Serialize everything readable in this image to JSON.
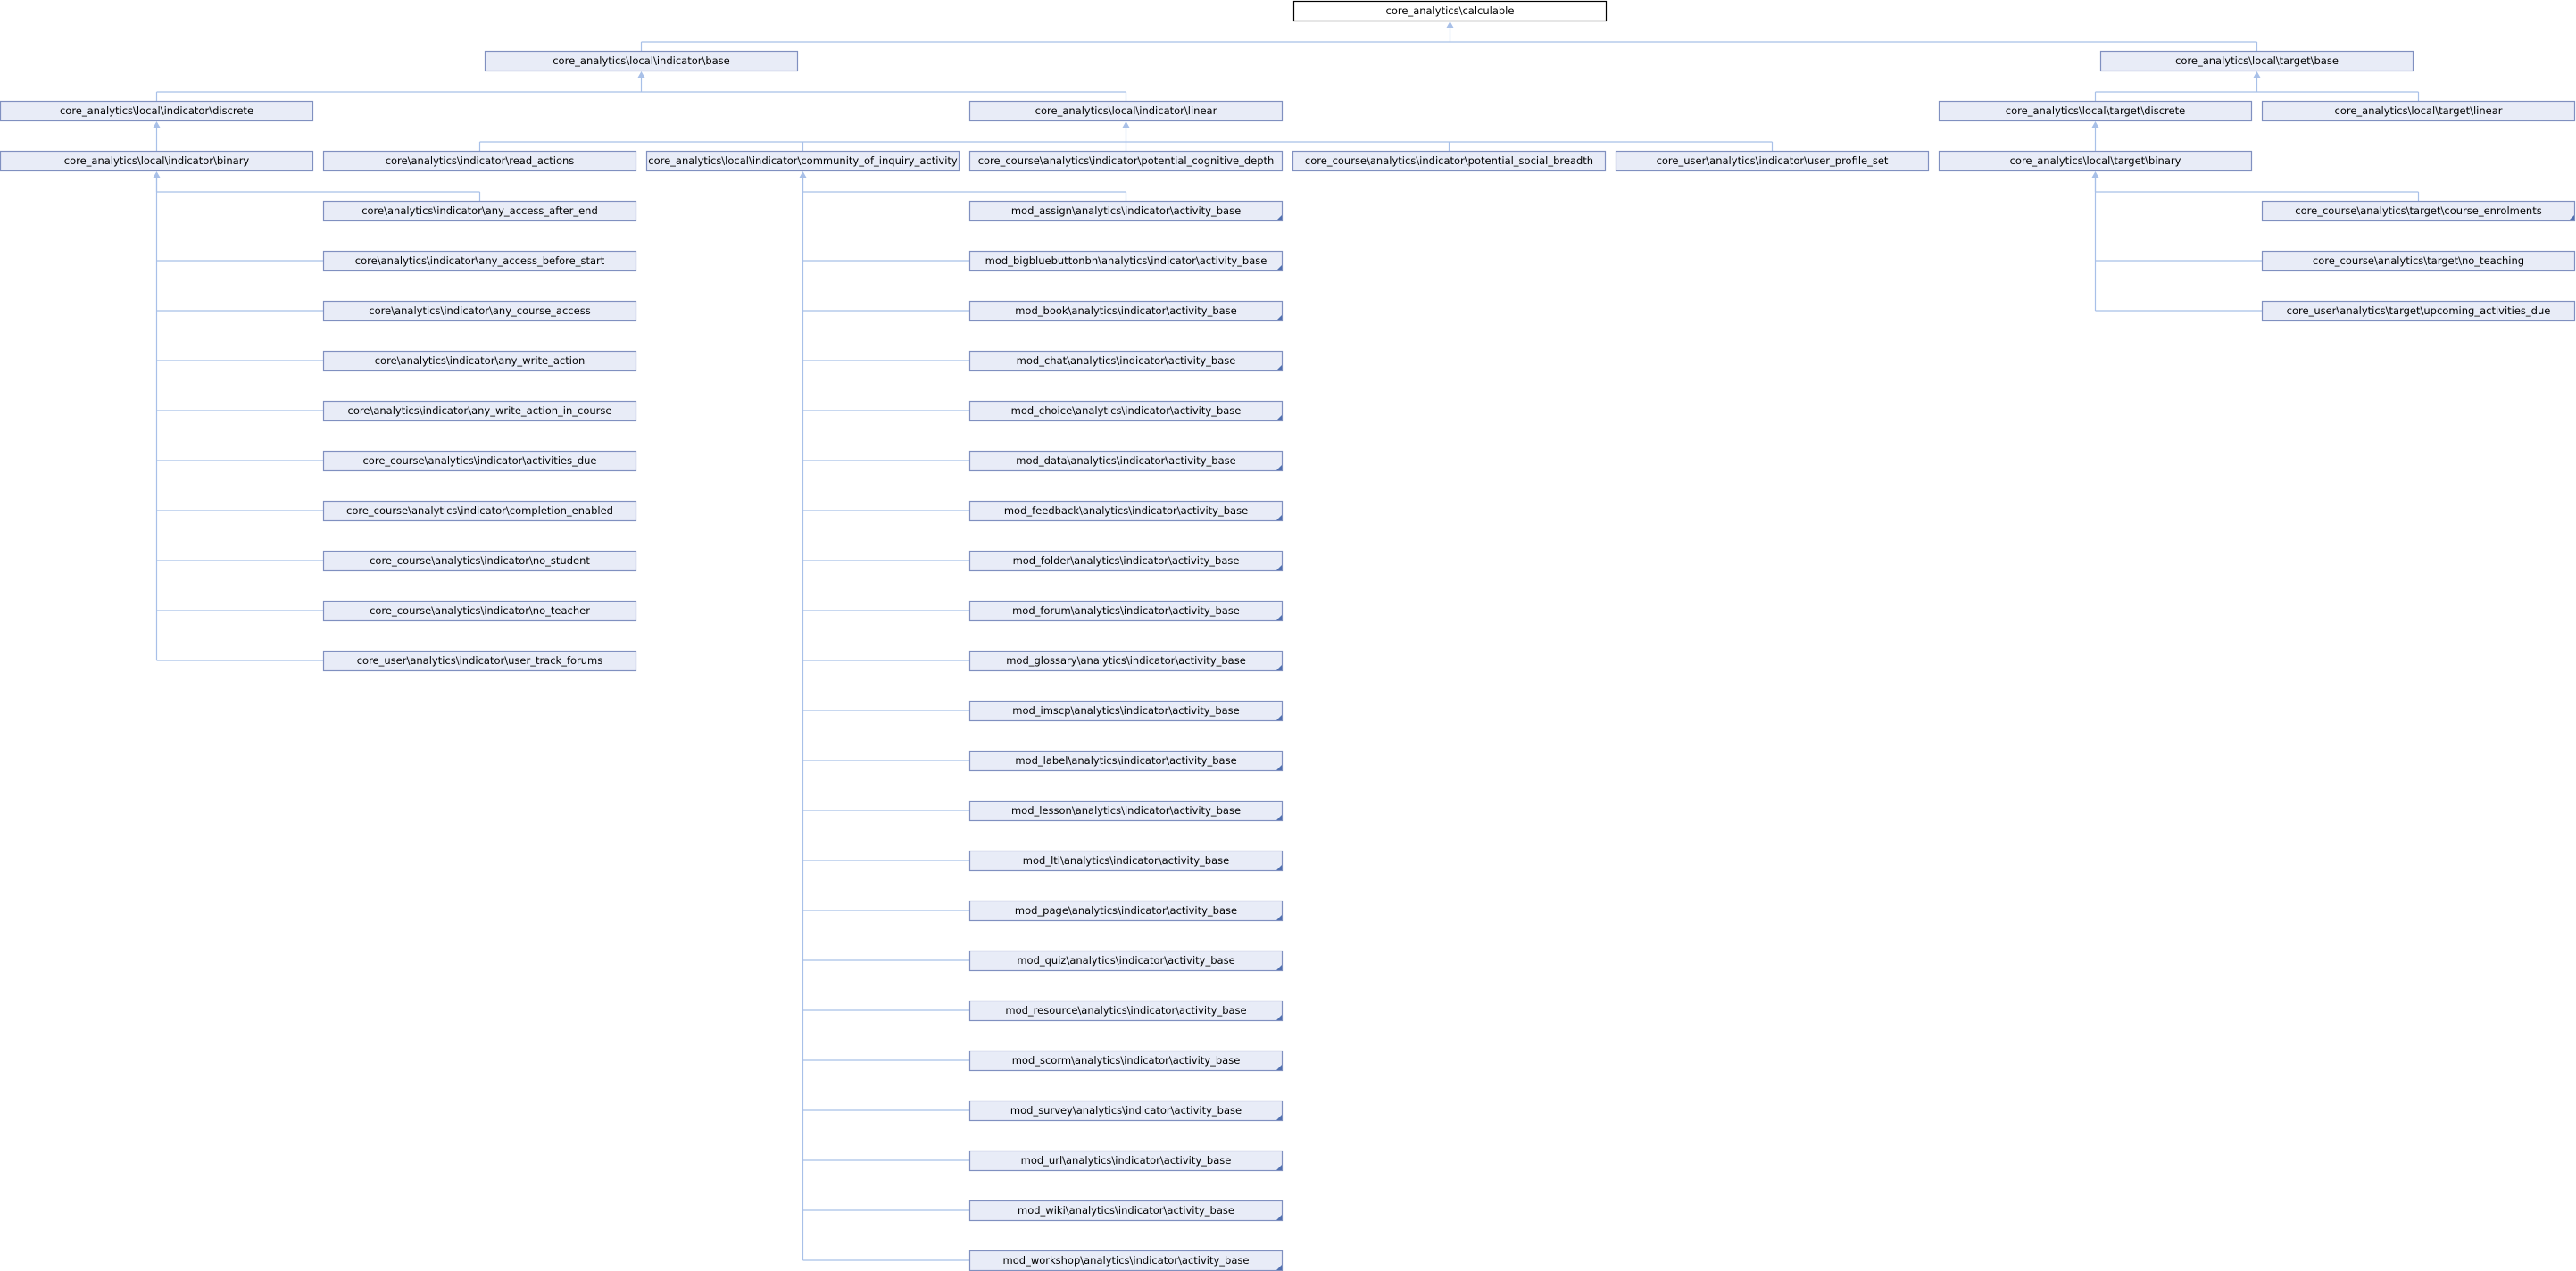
{
  "colors": {
    "node_fill": "#e8ecf7",
    "node_border": "#8090c0",
    "root_fill": "#ffffff",
    "edge": "#a8c0e8"
  },
  "nodes": {
    "calculable": "core_analytics\\calculable",
    "ind_base": "core_analytics\\local\\indicator\\base",
    "tgt_base": "core_analytics\\local\\target\\base",
    "ind_discrete": "core_analytics\\local\\indicator\\discrete",
    "ind_linear": "core_analytics\\local\\indicator\\linear",
    "tgt_discrete": "core_analytics\\local\\target\\discrete",
    "tgt_linear": "core_analytics\\local\\target\\linear",
    "ind_binary": "core_analytics\\local\\indicator\\binary",
    "read_actions": "core\\analytics\\indicator\\read_actions",
    "coi_activity": "core_analytics\\local\\indicator\\community_of_inquiry_activity",
    "potential_cognitive": "core_course\\analytics\\indicator\\potential_cognitive_depth",
    "potential_social": "core_course\\analytics\\indicator\\potential_social_breadth",
    "user_profile_set": "core_user\\analytics\\indicator\\user_profile_set",
    "tgt_binary": "core_analytics\\local\\target\\binary",
    "any_access_after_end": "core\\analytics\\indicator\\any_access_after_end",
    "any_access_before_start": "core\\analytics\\indicator\\any_access_before_start",
    "any_course_access": "core\\analytics\\indicator\\any_course_access",
    "any_write_action": "core\\analytics\\indicator\\any_write_action",
    "any_write_action_in_course": "core\\analytics\\indicator\\any_write_action_in_course",
    "activities_due": "core_course\\analytics\\indicator\\activities_due",
    "completion_enabled": "core_course\\analytics\\indicator\\completion_enabled",
    "no_student": "core_course\\analytics\\indicator\\no_student",
    "no_teacher": "core_course\\analytics\\indicator\\no_teacher",
    "user_track_forums": "core_user\\analytics\\indicator\\user_track_forums",
    "mod_assign": "mod_assign\\analytics\\indicator\\activity_base",
    "mod_bigbluebuttonbn": "mod_bigbluebuttonbn\\analytics\\indicator\\activity_base",
    "mod_book": "mod_book\\analytics\\indicator\\activity_base",
    "mod_chat": "mod_chat\\analytics\\indicator\\activity_base",
    "mod_choice": "mod_choice\\analytics\\indicator\\activity_base",
    "mod_data": "mod_data\\analytics\\indicator\\activity_base",
    "mod_feedback": "mod_feedback\\analytics\\indicator\\activity_base",
    "mod_folder": "mod_folder\\analytics\\indicator\\activity_base",
    "mod_forum": "mod_forum\\analytics\\indicator\\activity_base",
    "mod_glossary": "mod_glossary\\analytics\\indicator\\activity_base",
    "mod_imscp": "mod_imscp\\analytics\\indicator\\activity_base",
    "mod_label": "mod_label\\analytics\\indicator\\activity_base",
    "mod_lesson": "mod_lesson\\analytics\\indicator\\activity_base",
    "mod_lti": "mod_lti\\analytics\\indicator\\activity_base",
    "mod_page": "mod_page\\analytics\\indicator\\activity_base",
    "mod_quiz": "mod_quiz\\analytics\\indicator\\activity_base",
    "mod_resource": "mod_resource\\analytics\\indicator\\activity_base",
    "mod_scorm": "mod_scorm\\analytics\\indicator\\activity_base",
    "mod_survey": "mod_survey\\analytics\\indicator\\activity_base",
    "mod_url": "mod_url\\analytics\\indicator\\activity_base",
    "mod_wiki": "mod_wiki\\analytics\\indicator\\activity_base",
    "mod_workshop": "mod_workshop\\analytics\\indicator\\activity_base",
    "course_enrolments": "core_course\\analytics\\target\\course_enrolments",
    "no_teaching": "core_course\\analytics\\target\\no_teaching",
    "upcoming_activities_due": "core_user\\analytics\\target\\upcoming_activities_due"
  },
  "edges": [
    [
      "calculable",
      "ind_base"
    ],
    [
      "calculable",
      "tgt_base"
    ],
    [
      "ind_base",
      "ind_discrete"
    ],
    [
      "ind_base",
      "ind_linear"
    ],
    [
      "ind_discrete",
      "ind_binary"
    ],
    [
      "ind_linear",
      "read_actions"
    ],
    [
      "ind_linear",
      "coi_activity"
    ],
    [
      "ind_linear",
      "potential_cognitive"
    ],
    [
      "ind_linear",
      "potential_social"
    ],
    [
      "ind_linear",
      "user_profile_set"
    ],
    [
      "tgt_base",
      "tgt_discrete"
    ],
    [
      "tgt_base",
      "tgt_linear"
    ],
    [
      "tgt_discrete",
      "tgt_binary"
    ],
    [
      "ind_binary",
      "any_access_after_end"
    ],
    [
      "ind_binary",
      "any_access_before_start"
    ],
    [
      "ind_binary",
      "any_course_access"
    ],
    [
      "ind_binary",
      "any_write_action"
    ],
    [
      "ind_binary",
      "any_write_action_in_course"
    ],
    [
      "ind_binary",
      "activities_due"
    ],
    [
      "ind_binary",
      "completion_enabled"
    ],
    [
      "ind_binary",
      "no_student"
    ],
    [
      "ind_binary",
      "no_teacher"
    ],
    [
      "ind_binary",
      "user_track_forums"
    ],
    [
      "coi_activity",
      "mod_assign"
    ],
    [
      "coi_activity",
      "mod_bigbluebuttonbn"
    ],
    [
      "coi_activity",
      "mod_book"
    ],
    [
      "coi_activity",
      "mod_chat"
    ],
    [
      "coi_activity",
      "mod_choice"
    ],
    [
      "coi_activity",
      "mod_data"
    ],
    [
      "coi_activity",
      "mod_feedback"
    ],
    [
      "coi_activity",
      "mod_folder"
    ],
    [
      "coi_activity",
      "mod_forum"
    ],
    [
      "coi_activity",
      "mod_glossary"
    ],
    [
      "coi_activity",
      "mod_imscp"
    ],
    [
      "coi_activity",
      "mod_label"
    ],
    [
      "coi_activity",
      "mod_lesson"
    ],
    [
      "coi_activity",
      "mod_lti"
    ],
    [
      "coi_activity",
      "mod_page"
    ],
    [
      "coi_activity",
      "mod_quiz"
    ],
    [
      "coi_activity",
      "mod_resource"
    ],
    [
      "coi_activity",
      "mod_scorm"
    ],
    [
      "coi_activity",
      "mod_survey"
    ],
    [
      "coi_activity",
      "mod_url"
    ],
    [
      "coi_activity",
      "mod_wiki"
    ],
    [
      "coi_activity",
      "mod_workshop"
    ],
    [
      "tgt_binary",
      "course_enrolments"
    ],
    [
      "tgt_binary",
      "no_teaching"
    ],
    [
      "tgt_binary",
      "upcoming_activities_due"
    ]
  ],
  "truncated": [
    "mod_assign",
    "mod_bigbluebuttonbn",
    "mod_book",
    "mod_chat",
    "mod_choice",
    "mod_data",
    "mod_feedback",
    "mod_folder",
    "mod_forum",
    "mod_glossary",
    "mod_imscp",
    "mod_label",
    "mod_lesson",
    "mod_lti",
    "mod_page",
    "mod_quiz",
    "mod_resource",
    "mod_scorm",
    "mod_survey",
    "mod_url",
    "mod_wiki",
    "mod_workshop",
    "course_enrolments"
  ]
}
